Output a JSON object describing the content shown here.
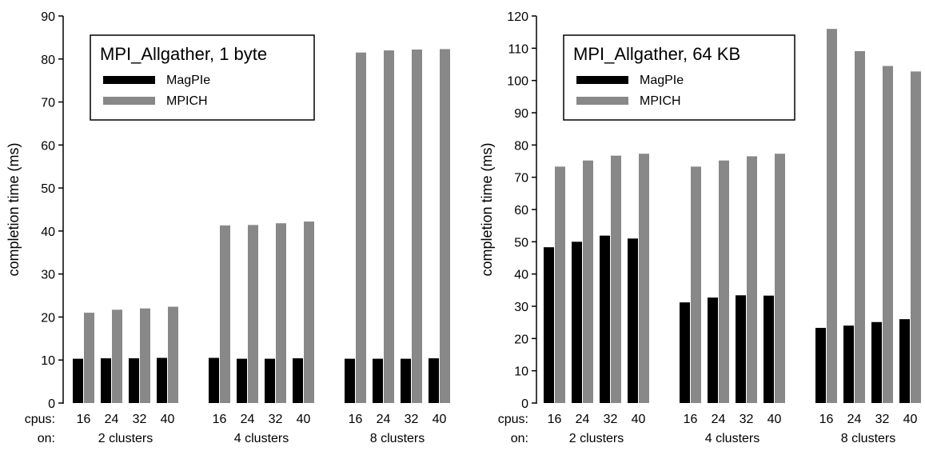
{
  "chart_data": [
    {
      "type": "bar",
      "title": "MPI_Allgather, 1 byte",
      "ylabel": "completion time (ms)",
      "ylim": [
        0,
        90
      ],
      "yticks": [
        0,
        10,
        20,
        30,
        40,
        50,
        60,
        70,
        80,
        90
      ],
      "row_labels": {
        "cpus": "cpus:",
        "on": "on:"
      },
      "groups": [
        {
          "label": "2 clusters",
          "cpus": [
            "16",
            "24",
            "32",
            "40"
          ]
        },
        {
          "label": "4 clusters",
          "cpus": [
            "16",
            "24",
            "32",
            "40"
          ]
        },
        {
          "label": "8 clusters",
          "cpus": [
            "16",
            "24",
            "32",
            "40"
          ]
        }
      ],
      "series": [
        {
          "name": "MagPIe",
          "color": "#000000",
          "values": [
            10.3,
            10.4,
            10.4,
            10.5,
            10.5,
            10.3,
            10.3,
            10.4,
            10.3,
            10.3,
            10.3,
            10.4
          ]
        },
        {
          "name": "MPICH",
          "color": "#888888",
          "values": [
            21.0,
            21.7,
            22.0,
            22.4,
            41.3,
            41.4,
            41.8,
            42.2,
            81.5,
            82.0,
            82.2,
            82.3
          ]
        }
      ],
      "legend": "top-left"
    },
    {
      "type": "bar",
      "title": "MPI_Allgather, 64 KB",
      "ylabel": "completion time (ms)",
      "ylim": [
        0,
        120
      ],
      "yticks": [
        0,
        10,
        20,
        30,
        40,
        50,
        60,
        70,
        80,
        90,
        100,
        110,
        120
      ],
      "row_labels": {
        "cpus": "cpus:",
        "on": "on:"
      },
      "groups": [
        {
          "label": "2 clusters",
          "cpus": [
            "16",
            "24",
            "32",
            "40"
          ]
        },
        {
          "label": "4 clusters",
          "cpus": [
            "16",
            "24",
            "32",
            "40"
          ]
        },
        {
          "label": "8 clusters",
          "cpus": [
            "16",
            "24",
            "32",
            "40"
          ]
        }
      ],
      "series": [
        {
          "name": "MagPIe",
          "color": "#000000",
          "values": [
            48.3,
            50.0,
            51.9,
            51.0,
            31.2,
            32.7,
            33.4,
            33.3,
            23.3,
            24.0,
            25.1,
            26.0
          ]
        },
        {
          "name": "MPICH",
          "color": "#888888",
          "values": [
            73.3,
            75.2,
            76.7,
            77.3,
            73.3,
            75.2,
            76.5,
            77.3,
            116.0,
            109.1,
            104.5,
            102.8
          ]
        }
      ],
      "legend": "top-left"
    }
  ]
}
